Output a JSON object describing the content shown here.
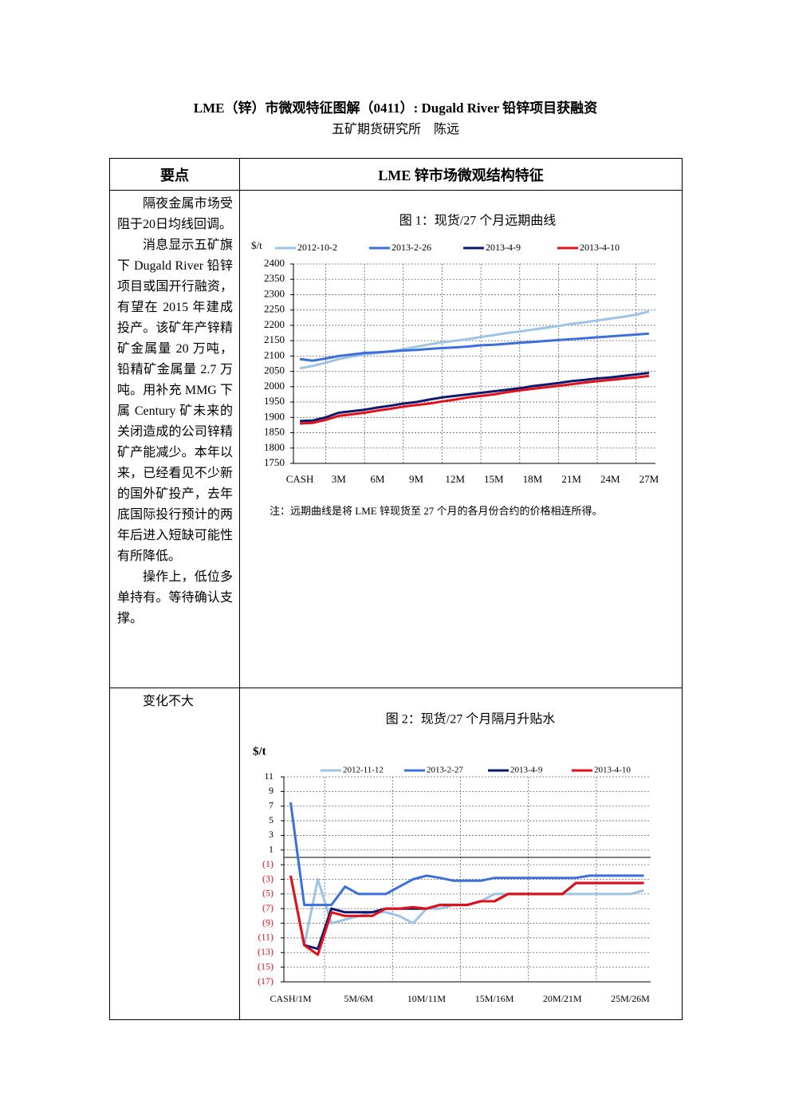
{
  "header": {
    "title": "LME（锌）市微观特征图解（0411）: Dugald River 铅锌项目获融资",
    "subtitle": "五矿期货研究所　陈远"
  },
  "table": {
    "headers": [
      "要点",
      "LME 锌市场微观结构特征"
    ],
    "rows": [
      {
        "points": [
          "隔夜金属市场受阻于20日均线回调。",
          "消息显示五矿旗下 Dugald River 铅锌项目或国开行融资，有望在 2015 年建成投产。该矿年产锌精矿金属量 20 万吨，铅精矿金属量 2.7 万吨。用补充 MMG 下属 Century 矿未来的关闭造成的公司锌精矿产能减少。本年以来，已经看见不少新的国外矿投产，去年底国际投行预计的两年后进入短缺可能性有所降低。",
          "操作上，低位多单持有。等待确认支撑。"
        ]
      },
      {
        "points": [
          "变化不大"
        ]
      }
    ]
  },
  "chart_data": [
    {
      "type": "line",
      "title": "图 1：现货/27 个月远期曲线",
      "y_label": "$/t",
      "note": "注：远期曲线是将 LME 锌现货至 27 个月的各月份合约的价格相连所得。",
      "categories": [
        "CASH",
        null,
        null,
        "3M",
        null,
        null,
        "6M",
        null,
        null,
        "9M",
        null,
        null,
        "12M",
        null,
        null,
        "15M",
        null,
        null,
        "18M",
        null,
        null,
        "21M",
        null,
        null,
        "24M",
        null,
        null,
        "27M"
      ],
      "ylim": [
        1750,
        2400
      ],
      "yticks": [
        1750,
        1800,
        1850,
        1900,
        1950,
        2000,
        2050,
        2100,
        2150,
        2200,
        2250,
        2300,
        2350,
        2400
      ],
      "grid": true,
      "series": [
        {
          "name": "2012-10-2",
          "color": "#9dc3e6",
          "values": [
            2060,
            2068,
            2078,
            2090,
            2098,
            2105,
            2110,
            2115,
            2122,
            2130,
            2138,
            2145,
            2150,
            2155,
            2162,
            2168,
            2175,
            2180,
            2186,
            2192,
            2198,
            2205,
            2210,
            2216,
            2222,
            2228,
            2235,
            2245
          ]
        },
        {
          "name": "2013-2-26",
          "color": "#3d6fdc",
          "values": [
            2090,
            2085,
            2092,
            2100,
            2105,
            2110,
            2112,
            2115,
            2118,
            2120,
            2123,
            2126,
            2128,
            2131,
            2135,
            2137,
            2140,
            2143,
            2146,
            2149,
            2152,
            2155,
            2158,
            2161,
            2164,
            2167,
            2170,
            2173
          ]
        },
        {
          "name": "2013-4-9",
          "color": "#0b1a6e",
          "values": [
            1888,
            1890,
            1900,
            1915,
            1920,
            1925,
            1932,
            1938,
            1945,
            1950,
            1958,
            1965,
            1970,
            1975,
            1980,
            1985,
            1990,
            1995,
            2002,
            2007,
            2012,
            2018,
            2022,
            2027,
            2030,
            2035,
            2040,
            2045
          ]
        },
        {
          "name": "2013-4-10",
          "color": "#e3101a",
          "values": [
            1880,
            1882,
            1892,
            1905,
            1910,
            1915,
            1922,
            1928,
            1935,
            1940,
            1945,
            1952,
            1958,
            1965,
            1970,
            1975,
            1982,
            1988,
            1993,
            1998,
            2003,
            2008,
            2013,
            2018,
            2022,
            2026,
            2030,
            2035
          ]
        }
      ]
    },
    {
      "type": "line",
      "title": "图 2：现货/27 个月隔月升贴水",
      "y_label": "$/t",
      "categories": [
        "CASH/1M",
        null,
        null,
        null,
        null,
        "5M/6M",
        null,
        null,
        null,
        null,
        "10M/11M",
        null,
        null,
        null,
        null,
        "15M/16M",
        null,
        null,
        null,
        null,
        "20M/21M",
        null,
        null,
        null,
        null,
        "25M/26M",
        null
      ],
      "ylim": [
        -17,
        11
      ],
      "grid": true,
      "negative_tick_color": "#e3101a",
      "yticks": [
        {
          "value": -17,
          "label": "(17)"
        },
        {
          "value": -15,
          "label": "(15)"
        },
        {
          "value": -13,
          "label": "(13)"
        },
        {
          "value": -11,
          "label": "(11)"
        },
        {
          "value": -9,
          "label": "(9)"
        },
        {
          "value": -7,
          "label": "(7)"
        },
        {
          "value": -5,
          "label": "(5)"
        },
        {
          "value": -3,
          "label": "(3)"
        },
        {
          "value": -1,
          "label": "(1)"
        },
        1,
        3,
        5,
        7,
        9,
        11
      ],
      "series": [
        {
          "name": "2012-11-12",
          "color": "#9dc3e6",
          "values": [
            null,
            -12,
            -3,
            -9,
            -8.5,
            -8,
            -7.5,
            -7.5,
            -8,
            -9,
            -7,
            -7,
            -6.5,
            -6.5,
            -6,
            -5,
            -5,
            -5,
            -5,
            -5,
            -5,
            -5,
            -5,
            -5,
            -5,
            -5,
            -4.5
          ]
        },
        {
          "name": "2013-2-27",
          "color": "#3d6fdc",
          "values": [
            7.5,
            -6.5,
            -6.5,
            -6.5,
            -4,
            -5,
            -5,
            -5,
            -4,
            -3,
            -2.5,
            -2.8,
            -3.2,
            -3.2,
            -3.2,
            -2.8,
            -2.8,
            -2.8,
            -2.8,
            -2.8,
            -2.8,
            -2.8,
            -2.5,
            -2.5,
            -2.5,
            -2.5,
            -2.5
          ]
        },
        {
          "name": "2013-4-9",
          "color": "#0b1a6e",
          "values": [
            -2.5,
            -12,
            -12.5,
            -7,
            -7.5,
            -7.5,
            -7.5,
            -7,
            -7,
            -7,
            -7,
            -6.5,
            -6.5,
            -6.5,
            -6,
            -6,
            -5,
            -5,
            -5,
            -5,
            -5,
            -3.5,
            -3.5,
            -3.5,
            -3.5,
            -3.5,
            -3.5
          ]
        },
        {
          "name": "2013-4-10",
          "color": "#e3101a",
          "values": [
            -2.5,
            -12,
            -13.3,
            -7.5,
            -8,
            -8,
            -8,
            -7,
            -7,
            -6.8,
            -7,
            -6.5,
            -6.5,
            -6.5,
            -6,
            -6,
            -5,
            -5,
            -5,
            -5,
            -5,
            -3.5,
            -3.5,
            -3.5,
            -3.5,
            -3.5,
            -3.5
          ]
        }
      ]
    }
  ]
}
